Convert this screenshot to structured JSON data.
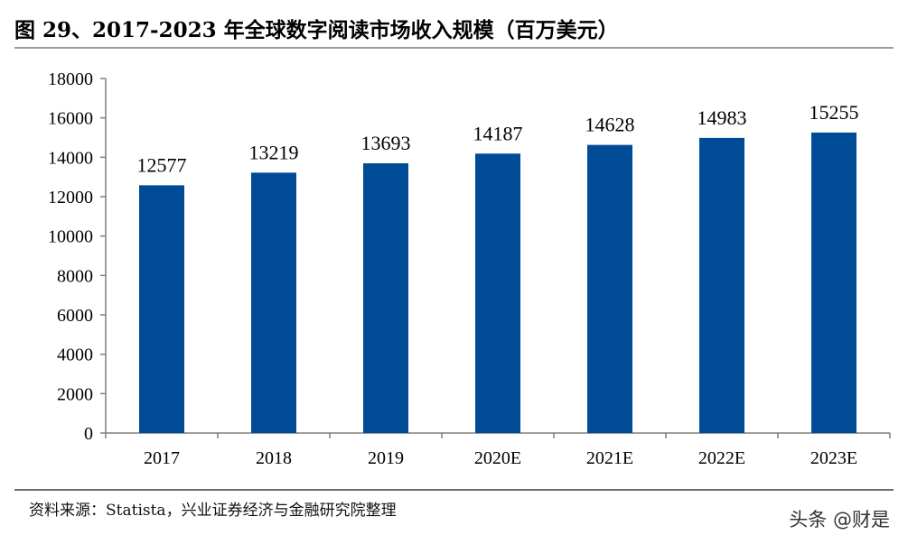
{
  "title": "图 29、2017-2023 年全球数字阅读市场收入规模（百万美元）",
  "source": "资料来源：Statista，兴业证券经济与金融研究院整理",
  "watermark": "头条 @财是",
  "colors": {
    "bar": "#004b96",
    "axis": "#7f7f7f"
  },
  "chart_data": {
    "type": "bar",
    "categories": [
      "2017",
      "2018",
      "2019",
      "2020E",
      "2021E",
      "2022E",
      "2023E"
    ],
    "values": [
      12577,
      13219,
      13693,
      14187,
      14628,
      14983,
      15255
    ],
    "title": "图 29、2017-2023 年全球数字阅读市场收入规模（百万美元）",
    "xlabel": "",
    "ylabel": "",
    "ylim": [
      0,
      18000
    ],
    "yticks": [
      0,
      2000,
      4000,
      6000,
      8000,
      10000,
      12000,
      14000,
      16000,
      18000
    ],
    "grid": false,
    "legend": "none",
    "data_labels": true
  }
}
